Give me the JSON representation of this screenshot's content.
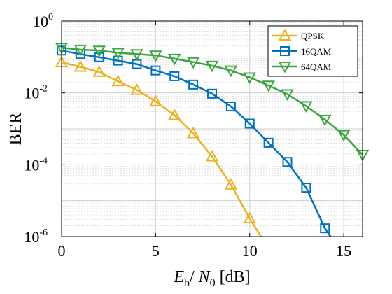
{
  "chart_data": {
    "type": "line",
    "title": "",
    "xlabel": {
      "main1": "E",
      "sub1": "b",
      "sep": "/ ",
      "main2": "N",
      "sub2": "0",
      "unit": "[dB]"
    },
    "ylabel": "BER",
    "xlim": [
      0,
      16
    ],
    "ylim_log10": [
      -6,
      0
    ],
    "yscale": "log",
    "grid": true,
    "minor_grid": true,
    "legend_position": "top-right",
    "x_ticks": [
      0,
      5,
      10,
      15
    ],
    "x_tick_labels": [
      "0",
      "5",
      "10",
      "15"
    ],
    "y_ticks": [
      {
        "base": "10",
        "exp": "0",
        "log10": 0
      },
      {
        "base": "10",
        "exp": "-2",
        "log10": -2
      },
      {
        "base": "10",
        "exp": "-4",
        "log10": -4
      },
      {
        "base": "10",
        "exp": "-6",
        "log10": -6
      }
    ],
    "series": [
      {
        "name": "QPSK",
        "color": "#EDB120",
        "marker": "triangle-up",
        "x": [
          0,
          1,
          2,
          3,
          4,
          5,
          6,
          7,
          8,
          9,
          10,
          10.6
        ],
        "y": [
          0.071,
          0.053,
          0.038,
          0.021,
          0.012,
          0.0058,
          0.0024,
          0.00075,
          0.00017,
          2.8e-05,
          3.2e-06,
          1e-06
        ]
      },
      {
        "name": "16QAM",
        "color": "#0072BD",
        "marker": "square",
        "x": [
          0,
          1,
          2,
          3,
          4,
          5,
          6,
          7,
          8,
          9,
          10,
          11,
          12,
          13,
          14,
          14.3
        ],
        "y": [
          0.15,
          0.12,
          0.098,
          0.079,
          0.063,
          0.042,
          0.029,
          0.017,
          0.0095,
          0.0042,
          0.0014,
          0.00041,
          0.00012,
          2.3e-05,
          1.7e-06,
          1e-06
        ]
      },
      {
        "name": "64QAM",
        "color": "#3CA540",
        "marker": "triangle-down",
        "x": [
          0,
          1,
          2,
          3,
          4,
          5,
          6,
          7,
          8,
          9,
          10,
          11,
          12,
          13,
          14,
          15,
          16
        ],
        "y": [
          0.18,
          0.16,
          0.15,
          0.13,
          0.12,
          0.11,
          0.089,
          0.072,
          0.057,
          0.042,
          0.027,
          0.016,
          0.0092,
          0.0043,
          0.0018,
          0.00068,
          0.00019
        ]
      }
    ]
  }
}
